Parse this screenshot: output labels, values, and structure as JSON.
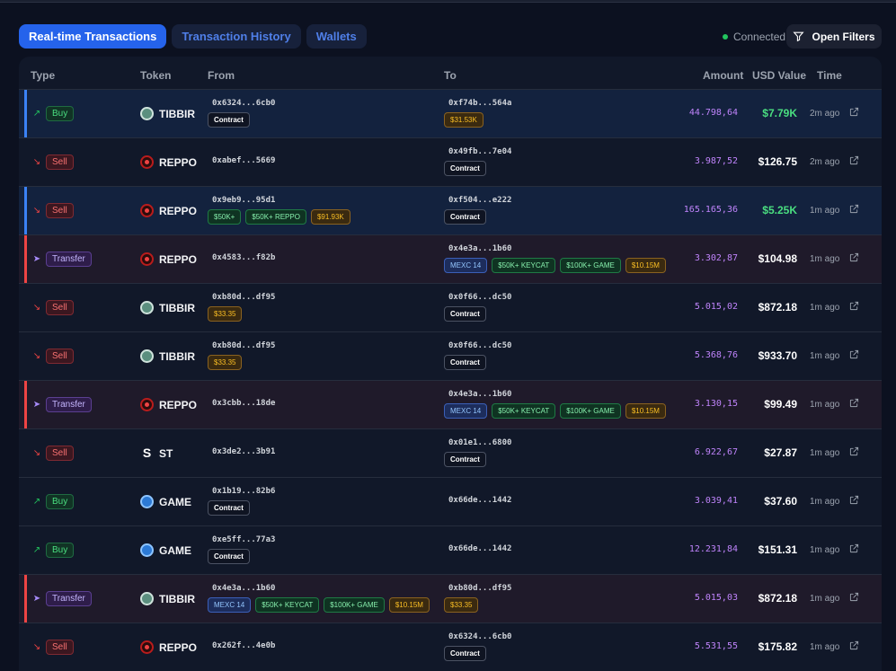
{
  "tabs": [
    {
      "label": "Real-time Transactions",
      "active": true
    },
    {
      "label": "Transaction History",
      "active": false
    },
    {
      "label": "Wallets",
      "active": false
    }
  ],
  "status": {
    "label": "Connected",
    "color": "#22c55e"
  },
  "filters": {
    "label": "Open Filters"
  },
  "columns": [
    "Type",
    "Token",
    "From",
    "To",
    "Amount",
    "USD Value",
    "Time"
  ],
  "rows": [
    {
      "type": "Buy",
      "kind": "buy",
      "style": "hl",
      "token": "TIBBIR",
      "icon": "tibbir",
      "from": "0x6324...6cb0",
      "from_tags": [
        {
          "label": "Contract",
          "c": "contract"
        }
      ],
      "to": "0xf74b...564a",
      "to_tags": [
        {
          "label": "$31.53K",
          "c": "amber"
        }
      ],
      "amount": "44.798,64",
      "usd": "$7.79K",
      "usd_green": true,
      "time": "2m ago"
    },
    {
      "type": "Sell",
      "kind": "sell",
      "style": "",
      "token": "REPPO",
      "icon": "reppo",
      "from": "0xabef...5669",
      "from_tags": [],
      "to": "0x49fb...7e04",
      "to_tags": [
        {
          "label": "Contract",
          "c": "contract"
        }
      ],
      "amount": "3.987,52",
      "usd": "$126.75",
      "usd_green": false,
      "time": "2m ago"
    },
    {
      "type": "Sell",
      "kind": "sell",
      "style": "hl",
      "token": "REPPO",
      "icon": "reppo",
      "from": "0x9eb9...95d1",
      "from_tags": [
        {
          "label": "$50K+",
          "c": "green"
        },
        {
          "label": "$50K+ REPPO",
          "c": "green"
        },
        {
          "label": "$91.93K",
          "c": "amber"
        }
      ],
      "to": "0xf504...e222",
      "to_tags": [
        {
          "label": "Contract",
          "c": "contract"
        }
      ],
      "amount": "165.165,36",
      "usd": "$5.25K",
      "usd_green": true,
      "time": "1m ago"
    },
    {
      "type": "Transfer",
      "kind": "transfer",
      "style": "tr",
      "token": "REPPO",
      "icon": "reppo",
      "from": "0x4583...f82b",
      "from_tags": [],
      "to": "0x4e3a...1b60",
      "to_tags": [
        {
          "label": "MEXC 14",
          "c": "blue"
        },
        {
          "label": "$50K+ KEYCAT",
          "c": "green"
        },
        {
          "label": "$100K+ GAME",
          "c": "green"
        },
        {
          "label": "$10.15M",
          "c": "amber"
        }
      ],
      "amount": "3.302,87",
      "usd": "$104.98",
      "usd_green": false,
      "time": "1m ago"
    },
    {
      "type": "Sell",
      "kind": "sell",
      "style": "",
      "token": "TIBBIR",
      "icon": "tibbir",
      "from": "0xb80d...df95",
      "from_tags": [
        {
          "label": "$33.35",
          "c": "amber"
        }
      ],
      "to": "0x0f66...dc50",
      "to_tags": [
        {
          "label": "Contract",
          "c": "contract"
        }
      ],
      "amount": "5.015,02",
      "usd": "$872.18",
      "usd_green": false,
      "time": "1m ago"
    },
    {
      "type": "Sell",
      "kind": "sell",
      "style": "",
      "token": "TIBBIR",
      "icon": "tibbir",
      "from": "0xb80d...df95",
      "from_tags": [
        {
          "label": "$33.35",
          "c": "amber"
        }
      ],
      "to": "0x0f66...dc50",
      "to_tags": [
        {
          "label": "Contract",
          "c": "contract"
        }
      ],
      "amount": "5.368,76",
      "usd": "$933.70",
      "usd_green": false,
      "time": "1m ago"
    },
    {
      "type": "Transfer",
      "kind": "transfer",
      "style": "tr",
      "token": "REPPO",
      "icon": "reppo",
      "from": "0x3cbb...18de",
      "from_tags": [],
      "to": "0x4e3a...1b60",
      "to_tags": [
        {
          "label": "MEXC 14",
          "c": "blue"
        },
        {
          "label": "$50K+ KEYCAT",
          "c": "green"
        },
        {
          "label": "$100K+ GAME",
          "c": "green"
        },
        {
          "label": "$10.15M",
          "c": "amber"
        }
      ],
      "amount": "3.130,15",
      "usd": "$99.49",
      "usd_green": false,
      "time": "1m ago"
    },
    {
      "type": "Sell",
      "kind": "sell",
      "style": "",
      "token": "ST",
      "icon": "st",
      "from": "0x3de2...3b91",
      "from_tags": [],
      "to": "0x01e1...6800",
      "to_tags": [
        {
          "label": "Contract",
          "c": "contract"
        }
      ],
      "amount": "6.922,67",
      "usd": "$27.87",
      "usd_green": false,
      "time": "1m ago"
    },
    {
      "type": "Buy",
      "kind": "buy",
      "style": "",
      "token": "GAME",
      "icon": "game",
      "from": "0x1b19...82b6",
      "from_tags": [
        {
          "label": "Contract",
          "c": "contract"
        }
      ],
      "to": "0x66de...1442",
      "to_tags": [],
      "amount": "3.039,41",
      "usd": "$37.60",
      "usd_green": false,
      "time": "1m ago"
    },
    {
      "type": "Buy",
      "kind": "buy",
      "style": "",
      "token": "GAME",
      "icon": "game",
      "from": "0xe5ff...77a3",
      "from_tags": [
        {
          "label": "Contract",
          "c": "contract"
        }
      ],
      "to": "0x66de...1442",
      "to_tags": [],
      "amount": "12.231,84",
      "usd": "$151.31",
      "usd_green": false,
      "time": "1m ago"
    },
    {
      "type": "Transfer",
      "kind": "transfer",
      "style": "tr",
      "token": "TIBBIR",
      "icon": "tibbir",
      "from": "0x4e3a...1b60",
      "from_tags": [
        {
          "label": "MEXC 14",
          "c": "blue"
        },
        {
          "label": "$50K+ KEYCAT",
          "c": "green"
        },
        {
          "label": "$100K+ GAME",
          "c": "green"
        },
        {
          "label": "$10.15M",
          "c": "amber"
        }
      ],
      "to": "0xb80d...df95",
      "to_tags": [
        {
          "label": "$33.35",
          "c": "amber"
        }
      ],
      "amount": "5.015,03",
      "usd": "$872.18",
      "usd_green": false,
      "time": "1m ago"
    },
    {
      "type": "Sell",
      "kind": "sell",
      "style": "",
      "token": "REPPO",
      "icon": "reppo",
      "from": "0x262f...4e0b",
      "from_tags": [],
      "to": "0x6324...6cb0",
      "to_tags": [
        {
          "label": "Contract",
          "c": "contract"
        }
      ],
      "amount": "5.531,55",
      "usd": "$175.82",
      "usd_green": false,
      "time": "1m ago"
    }
  ]
}
